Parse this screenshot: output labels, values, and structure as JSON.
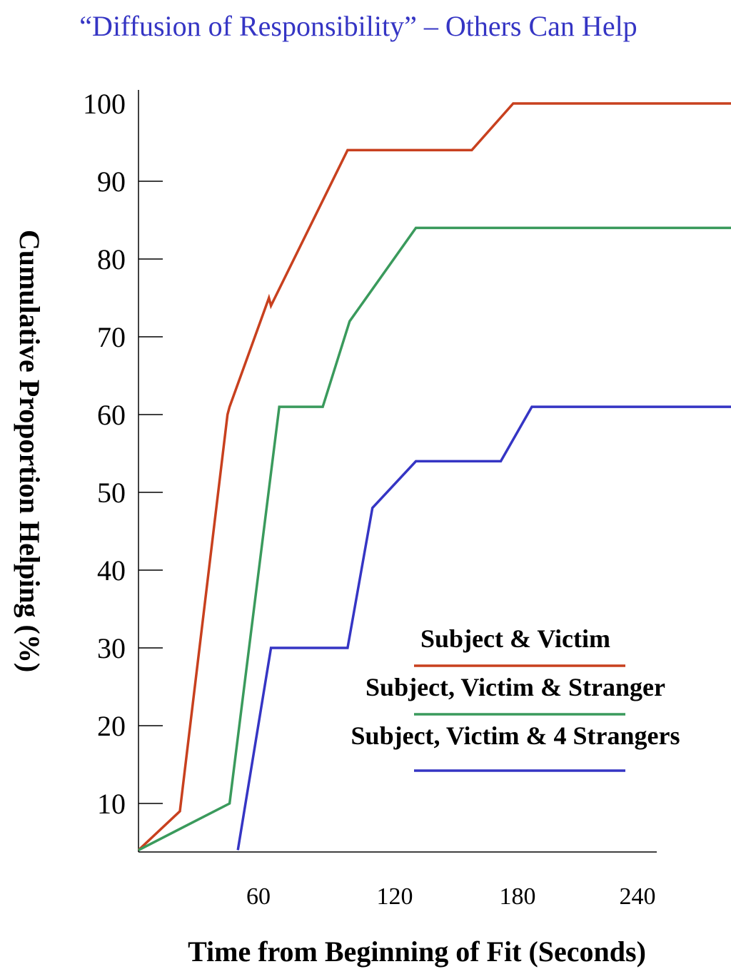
{
  "chart_data": {
    "type": "line",
    "title": "“Diffusion of Responsibility” – Others Can Help",
    "xlabel": "Time from Beginning of Fit (Seconds)",
    "ylabel": "Cumulative Proportion Helping (%)",
    "x_ticks": [
      60,
      120,
      180,
      240
    ],
    "y_ticks": [
      10,
      20,
      30,
      40,
      50,
      60,
      70,
      80,
      90,
      100
    ],
    "xlim": [
      0,
      240
    ],
    "ylim": [
      4,
      100
    ],
    "legend_position": "lower-right",
    "series": [
      {
        "name": "Subject & Victim",
        "color": "#c8401e",
        "x": [
          0,
          20,
          43,
          44,
          63,
          64,
          101,
          161,
          181,
          290
        ],
        "y": [
          4,
          9,
          60,
          61,
          75,
          74,
          94,
          94,
          100,
          100
        ]
      },
      {
        "name": "Subject, Victim & Stranger",
        "color": "#3a9a5c",
        "x": [
          0,
          44,
          68,
          89,
          102,
          134,
          290
        ],
        "y": [
          4,
          10,
          61,
          61,
          72,
          84,
          84
        ]
      },
      {
        "name": "Subject, Victim & 4 Strangers",
        "color": "#3535c4",
        "x": [
          48,
          64,
          101,
          113,
          134,
          175,
          190,
          290
        ],
        "y": [
          4,
          30,
          30,
          48,
          54,
          54,
          61,
          61
        ]
      }
    ]
  }
}
